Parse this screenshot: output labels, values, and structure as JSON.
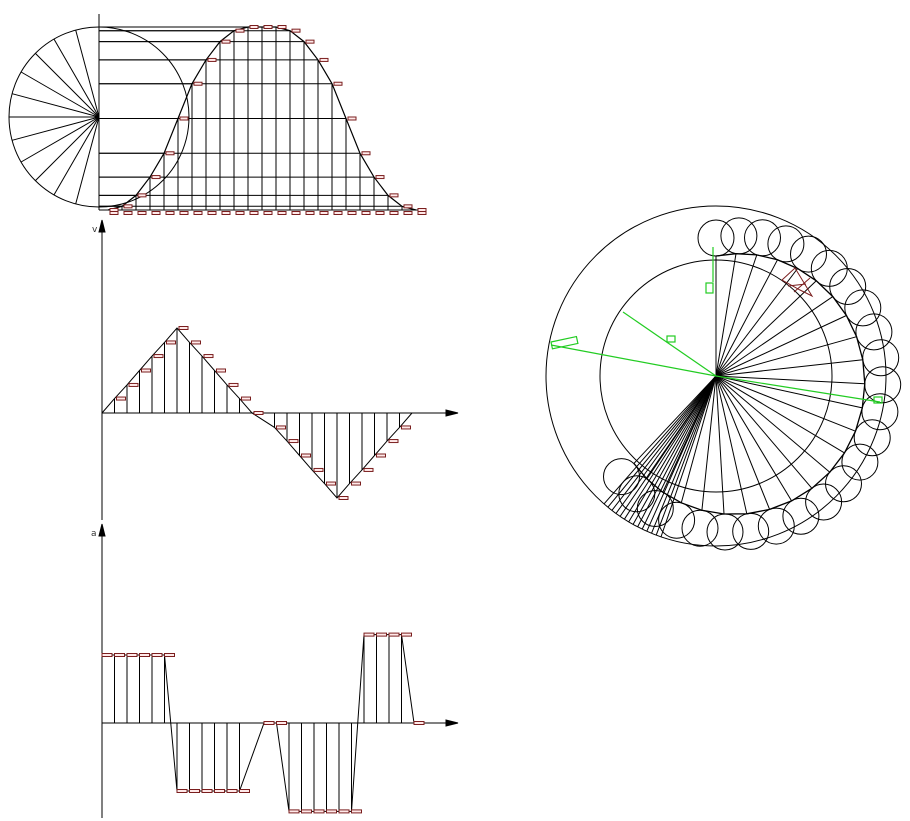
{
  "colors": {
    "ink": "#000000",
    "marker": "#7a1e1e",
    "marker_fill": "#ffe9e9",
    "green": "#22cc22"
  },
  "labels": {
    "velocity_axis": "v",
    "accel_axis": "a"
  },
  "displacement": {
    "rise_fraction": [
      0,
      0.02,
      0.08,
      0.18,
      0.31,
      0.5,
      0.69,
      0.82,
      0.92,
      0.98,
      1.0
    ],
    "return_fraction": [
      1.0,
      0.98,
      0.92,
      0.82,
      0.69,
      0.5,
      0.31,
      0.18,
      0.08,
      0.02,
      0
    ]
  },
  "velocity": {
    "rise": [
      0,
      0.17,
      0.33,
      0.5,
      0.67,
      0.83,
      1.0,
      0.83,
      0.67,
      0.5,
      0.33,
      0.17,
      0
    ],
    "return": [
      0,
      -0.17,
      -0.33,
      -0.5,
      -0.67,
      -0.83,
      -1.0,
      -0.83,
      -0.67,
      -0.5,
      -0.33,
      -0.17,
      0
    ]
  },
  "acceleration": {
    "segments": [
      1,
      1,
      1,
      1,
      1,
      1,
      -1,
      -1,
      -1,
      -1,
      -1,
      -1,
      0,
      0,
      -1.3,
      -1.3,
      -1.3,
      -1.3,
      -1.3,
      -1.3,
      1.3,
      1.3,
      1.3,
      1.3,
      0
    ]
  }
}
